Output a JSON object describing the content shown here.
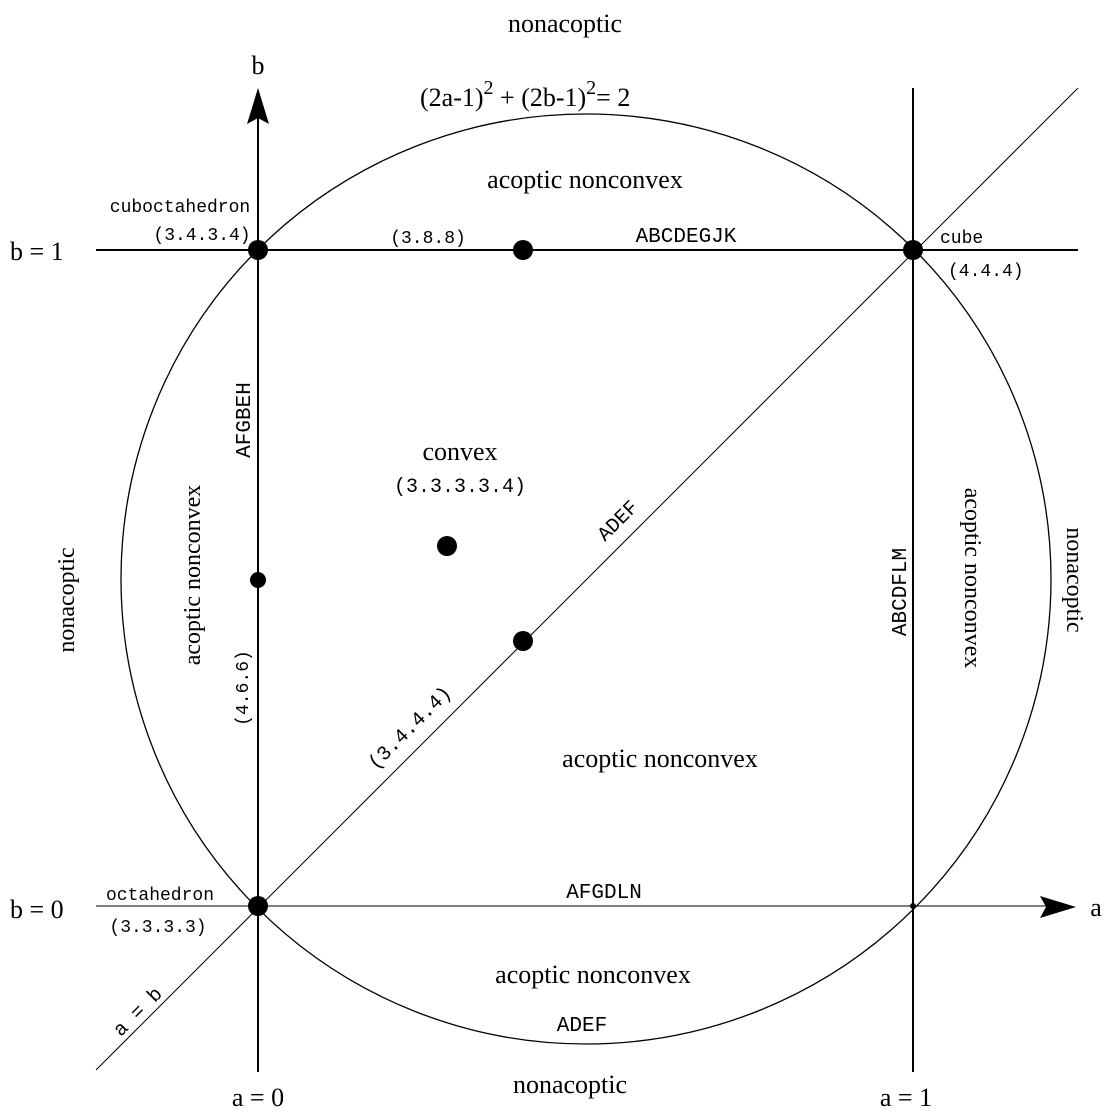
{
  "labels": {
    "top_region": "nonacoptic",
    "bottom_region": "nonacoptic",
    "left_region": "nonacoptic",
    "right_region": "nonacoptic",
    "top_inner": "acoptic nonconvex",
    "bottom_inner": "acoptic nonconvex",
    "left_inner": "acoptic nonconvex",
    "right_inner": "acoptic nonconvex",
    "center_lower": "acoptic nonconvex",
    "convex": "convex",
    "convex_sub": "(3.3.3.3.4)"
  },
  "equation": {
    "part1": "(2a-1)",
    "exp1": "2",
    "plus": " + ",
    "part2": "(2b-1)",
    "exp2": "2",
    "tail": "= 2"
  },
  "axes": {
    "a_label": "a",
    "b_label": "b",
    "b1": "b = 1",
    "b0": "b = 0",
    "a0": "a = 0",
    "a1": "a = 1"
  },
  "lines": {
    "top": "ABCDEGJK",
    "bottom": "AFGDLN",
    "left": "AFGBEH",
    "right": "ABCDFLM",
    "diag_upper": "ADEF",
    "diag_lower": "(3.4.4.4)",
    "diag_label": "a = b",
    "circle_bottom": "ADEF"
  },
  "points": {
    "cuboctahedron": "cuboctahedron",
    "cuboctahedron_code": "(3.4.3.4)",
    "truncated_cube": "(3.8.8)",
    "cube": "cube",
    "cube_code": "(4.4.4)",
    "octahedron": "octahedron",
    "octahedron_code": "(3.3.3.3)",
    "truncated_octahedron": "(4.6.6)"
  }
}
